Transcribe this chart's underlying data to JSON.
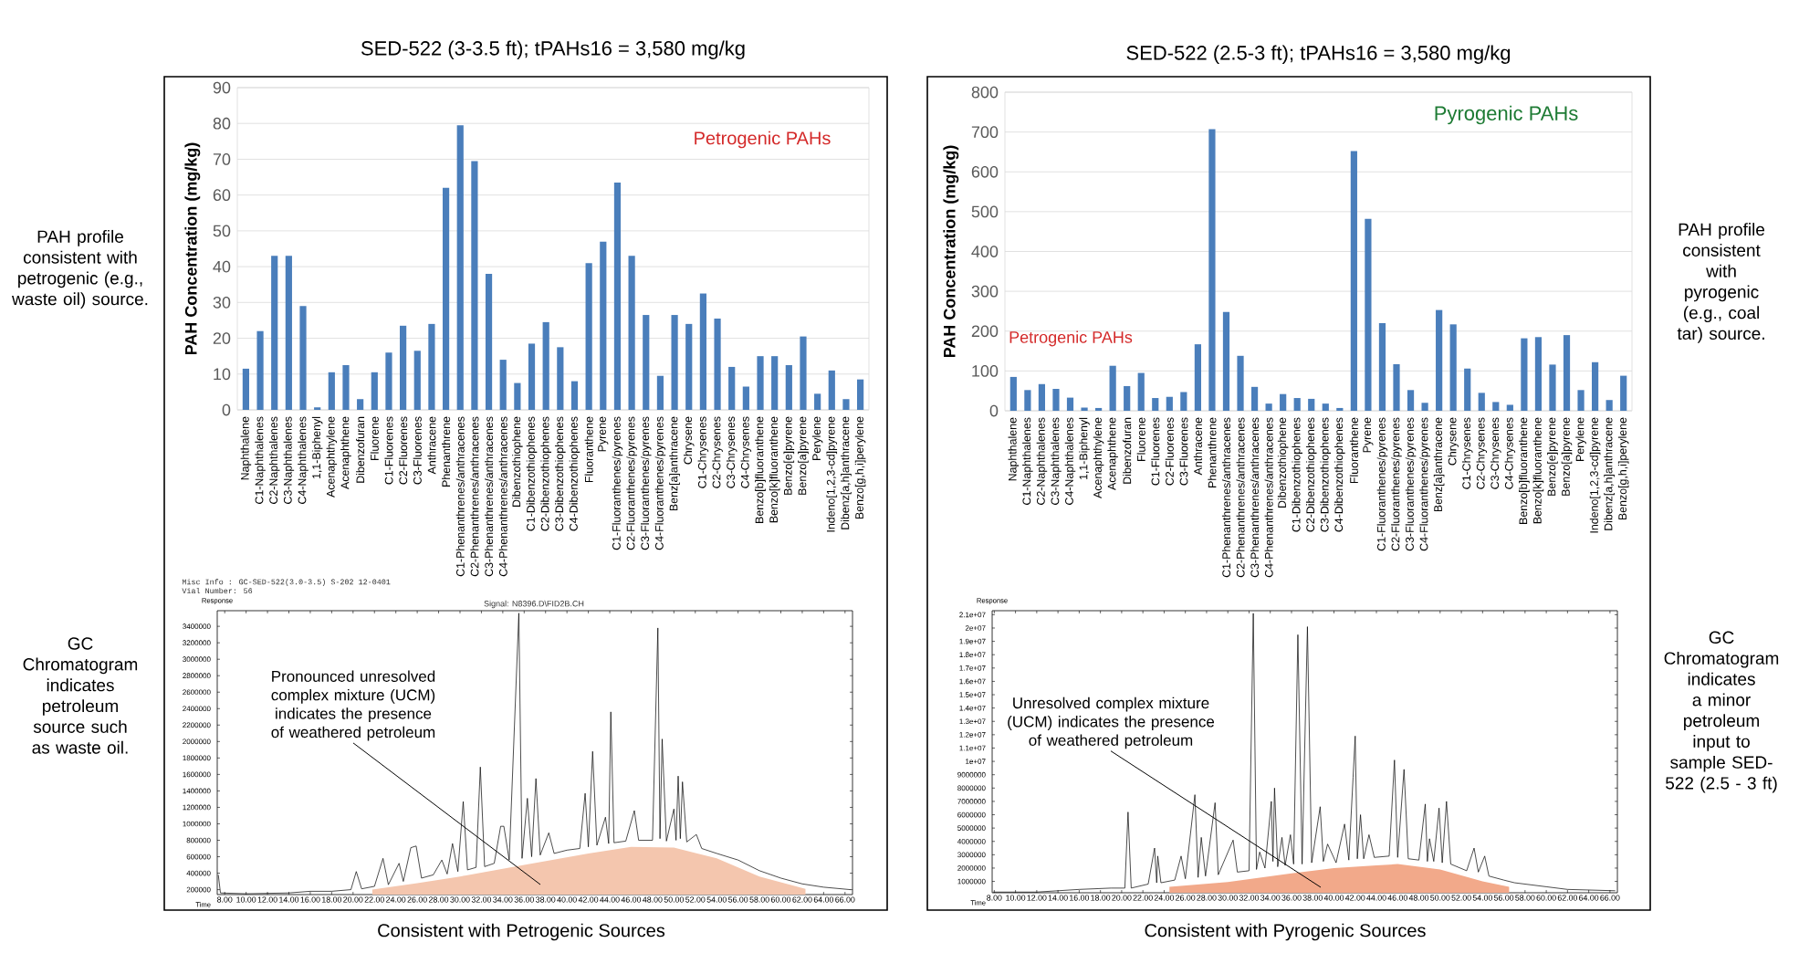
{
  "chart_data": [
    {
      "type": "bar",
      "title": "SED-522 (3-3.5 ft); tPAHs16 = 3,580 mg/kg",
      "ylabel": "PAH Concentration (mg/kg)",
      "categories": [
        "Naphthalene",
        "C1-Naphthalenes",
        "C2-Naphthalenes",
        "C3-Naphthalenes",
        "C4-Naphthalenes",
        "1,1-Biphenyl",
        "Acenaphthylene",
        "Acenaphthene",
        "Dibenzofuran",
        "Fluorene",
        "C1-Fluorenes",
        "C2-Fluorenes",
        "C3-Fluorenes",
        "Anthracene",
        "Phenanthrene",
        "C1-Phenanthrenes/anthracenes",
        "C2-Phenanthrenes/anthracenes",
        "C3-Phenanthrenes/anthracenes",
        "C4-Phenanthrenes/anthracenes",
        "Dibenzothiophene",
        "C1-Dibenzothiophenes",
        "C2-Dibenzothiophenes",
        "C3-Dibenzothiophenes",
        "C4-Dibenzothiophenes",
        "Fluoranthene",
        "Pyrene",
        "C1-Fluoranthenes/pyrenes",
        "C2-Fluoranthenes/pyrenes",
        "C3-Fluoranthenes/pyrenes",
        "C4-Fluoranthenes/pyrenes",
        "Benz[a]anthracene",
        "Chrysene",
        "C1-Chrysenes",
        "C2-Chrysenes",
        "C3-Chrysenes",
        "C4-Chrysenes",
        "Benzo[b]fluoranthene",
        "Benzo[k]fluoranthene",
        "Benzo[e]pyrene",
        "Benzo[a]pyrene",
        "Perylene",
        "Indeno[1,2,3-cd]pyrene",
        "Dibenz[a,h]anthracene",
        "Benzo[g,h,i]perylene"
      ],
      "values": [
        11.5,
        22,
        43,
        43,
        29,
        0.7,
        10.5,
        12.5,
        3,
        10.5,
        16,
        23.5,
        16.5,
        24,
        62,
        79.5,
        69.5,
        38,
        14,
        7.5,
        18.5,
        24.5,
        17.5,
        8,
        41,
        47,
        63.5,
        43,
        26.5,
        9.5,
        26.5,
        24,
        32.5,
        25.5,
        12,
        6.5,
        15,
        15,
        12.5,
        20.5,
        4.5,
        11,
        3,
        8.5
      ],
      "color": "#4a7ebb",
      "ylim": [
        0,
        90
      ],
      "yticks": [
        0,
        10,
        20,
        30,
        40,
        50,
        60,
        70,
        80,
        90
      ],
      "grid": "y",
      "annotations": [
        "Petrogenic PAHs",
        "PAH profile consistent with petrogenic (e.g., waste oil) source."
      ]
    },
    {
      "type": "bar",
      "title": "SED-522 (2.5-3 ft); tPAHs16 = 3,580 mg/kg",
      "ylabel": "PAH Concentration (mg/kg)",
      "categories": [
        "Naphthalene",
        "C1-Naphthalenes",
        "C2-Naphthalenes",
        "C3-Naphthalenes",
        "C4-Naphthalenes",
        "1,1-Biphenyl",
        "Acenaphthylene",
        "Acenaphthene",
        "Dibenzofuran",
        "Fluorene",
        "C1-Fluorenes",
        "C2-Fluorenes",
        "C3-Fluorenes",
        "Anthracene",
        "Phenanthrene",
        "C1-Phenanthrenes/anthracenes",
        "C2-Phenanthrenes/anthracenes",
        "C3-Phenanthrenes/anthracenes",
        "C4-Phenanthrenes/anthracenes",
        "Dibenzothiophene",
        "C1-Dibenzothiophenes",
        "C2-Dibenzothiophenes",
        "C3-Dibenzothiophenes",
        "C4-Dibenzothiophenes",
        "Fluoranthene",
        "Pyrene",
        "C1-Fluoranthenes/pyrenes",
        "C2-Fluoranthenes/pyrenes",
        "C3-Fluoranthenes/pyrenes",
        "C4-Fluoranthenes/pyrenes",
        "Benz[a]anthracene",
        "Chrysene",
        "C1-Chrysenes",
        "C2-Chrysenes",
        "C3-Chrysenes",
        "C4-Chrysenes",
        "Benzo[b]fluoranthene",
        "Benzo[k]fluoranthene",
        "Benzo[e]pyrene",
        "Benzo[a]pyrene",
        "Perylene",
        "Indeno[1,2,3-cd]pyrene",
        "Dibenz[a,h]anthracene",
        "Benzo[g,h,i]perylene"
      ],
      "values": [
        85,
        52,
        67,
        55,
        33,
        8,
        7,
        113,
        62,
        95,
        32,
        35,
        47,
        167,
        707,
        248,
        138,
        60,
        18,
        42,
        32,
        30,
        18,
        7,
        652,
        482,
        220,
        117,
        52,
        20,
        253,
        217,
        106,
        45,
        22,
        15,
        182,
        185,
        116,
        190,
        52,
        122,
        27,
        88
      ],
      "color": "#4a7ebb",
      "ylim": [
        0,
        800
      ],
      "yticks": [
        0,
        100,
        200,
        300,
        400,
        500,
        600,
        700,
        800
      ],
      "grid": "y",
      "annotations": [
        "Pyrogenic PAHs",
        "Petrogenic PAHs",
        "PAH profile consistent with pyrogenic (e.g., coal tar) source."
      ]
    },
    {
      "type": "line",
      "xlabel": "Time",
      "ylabel": "Response",
      "xlim": [
        7.3,
        66.7
      ],
      "ylim": [
        140000,
        3590000
      ],
      "xticks": [
        {
          "value": 8,
          "label": "8.00"
        },
        {
          "value": 10,
          "label": "10.00"
        },
        {
          "value": 12,
          "label": "12.00"
        },
        {
          "value": 14,
          "label": "14.00"
        },
        {
          "value": 16,
          "label": "16.00"
        },
        {
          "value": 18,
          "label": "18.00"
        },
        {
          "value": 20,
          "label": "20.00"
        },
        {
          "value": 22,
          "label": "22.00"
        },
        {
          "value": 24,
          "label": "24.00"
        },
        {
          "value": 26,
          "label": "26.00"
        },
        {
          "value": 28,
          "label": "28.00"
        },
        {
          "value": 30,
          "label": "30.00"
        },
        {
          "value": 32,
          "label": "32.00"
        },
        {
          "value": 34,
          "label": "34.00"
        },
        {
          "value": 36,
          "label": "36.00"
        },
        {
          "value": 38,
          "label": "38.00"
        },
        {
          "value": 40,
          "label": "40.00"
        },
        {
          "value": 42,
          "label": "42.00"
        },
        {
          "value": 44,
          "label": "44.00"
        },
        {
          "value": 46,
          "label": "46.00"
        },
        {
          "value": 48,
          "label": "48.00"
        },
        {
          "value": 50,
          "label": "50.00"
        },
        {
          "value": 52,
          "label": "52.00"
        },
        {
          "value": 54,
          "label": "54.00"
        },
        {
          "value": 56,
          "label": "56.00"
        },
        {
          "value": 58,
          "label": "58.00"
        },
        {
          "value": 60,
          "label": "60.00"
        },
        {
          "value": 62,
          "label": "62.00"
        },
        {
          "value": 64,
          "label": "64.00"
        },
        {
          "value": 66,
          "label": "66.00"
        }
      ],
      "yticks": [
        200000,
        400000,
        600000,
        800000,
        1000000,
        1200000,
        1400000,
        1600000,
        1800000,
        2000000,
        2200000,
        2400000,
        2600000,
        2800000,
        3000000,
        3200000,
        3400000
      ],
      "series": [
        {
          "type": "area",
          "color": "#f4c6ae",
          "x": [
            21.8,
            26,
            30,
            36,
            42,
            46,
            50,
            54,
            58,
            62.3
          ],
          "values": [
            200000,
            280000,
            360000,
            500000,
            640000,
            720000,
            710000,
            580000,
            360000,
            210000
          ]
        },
        {
          "type": "line",
          "color": "#000000",
          "x": [
            7.4,
            7.6,
            10,
            14,
            16,
            18,
            19.8,
            20.3,
            20.8,
            22,
            22.8,
            23.3,
            24.3,
            24.7,
            25.4,
            25.9,
            26.4,
            27.5,
            28.3,
            28.8,
            29.3,
            29.8,
            30.3,
            30.7,
            31.5,
            31.9,
            32.3,
            33.2,
            33.8,
            34.1,
            34.6,
            35.5,
            35.8,
            36.3,
            36.7,
            37.1,
            37.5,
            38.3,
            38.8,
            40,
            41.2,
            41.7,
            42.0,
            42.4,
            42.8,
            43.6,
            43.9,
            44.1,
            44.4,
            45.5,
            46.3,
            46.7,
            48,
            48.5,
            48.7,
            48.9,
            49.3,
            50.0,
            50.2,
            50.4,
            50.6,
            50.8,
            51.2,
            52.1,
            52.6,
            54,
            56,
            58,
            60,
            62,
            64,
            66.5
          ],
          "values": [
            380000,
            160000,
            150000,
            160000,
            180000,
            180000,
            200000,
            420000,
            210000,
            240000,
            580000,
            260000,
            520000,
            300000,
            710000,
            730000,
            340000,
            380000,
            560000,
            390000,
            760000,
            420000,
            1270000,
            440000,
            470000,
            1690000,
            480000,
            520000,
            970000,
            970000,
            560000,
            3560000,
            580000,
            1310000,
            600000,
            1550000,
            620000,
            890000,
            640000,
            680000,
            700000,
            1370000,
            720000,
            1880000,
            740000,
            1080000,
            760000,
            2360000,
            770000,
            790000,
            1160000,
            800000,
            800000,
            3380000,
            820000,
            2030000,
            790000,
            1180000,
            800000,
            1580000,
            820000,
            1510000,
            780000,
            870000,
            700000,
            640000,
            560000,
            430000,
            340000,
            270000,
            230000,
            200000
          ]
        }
      ],
      "annotations": [
        "Pronounced unresolved complex mixture (UCM) indicates the presence of weathered petroleum",
        "GC Chromatogram indicates petroleum source such as waste oil.",
        "Consistent with Petrogenic Sources",
        "Misc Info : GC-SED-522(3.0-3.5) S-202 12-0401",
        "Vial Number: 56",
        "Signal: N8396.D\\FID2B.CH"
      ]
    },
    {
      "type": "line",
      "xlabel": "Time",
      "ylabel": "Response",
      "xlim": [
        7.8,
        66.7
      ],
      "ylim": [
        150000,
        21300000
      ],
      "xticks": [
        {
          "value": 8,
          "label": "8.00"
        },
        {
          "value": 10,
          "label": "10.00"
        },
        {
          "value": 12,
          "label": "12.00"
        },
        {
          "value": 14,
          "label": "14.00"
        },
        {
          "value": 16,
          "label": "16.00"
        },
        {
          "value": 18,
          "label": "18.00"
        },
        {
          "value": 20,
          "label": "20.00"
        },
        {
          "value": 22,
          "label": "22.00"
        },
        {
          "value": 24,
          "label": "24.00"
        },
        {
          "value": 26,
          "label": "26.00"
        },
        {
          "value": 28,
          "label": "28.00"
        },
        {
          "value": 30,
          "label": "30.00"
        },
        {
          "value": 32,
          "label": "32.00"
        },
        {
          "value": 34,
          "label": "34.00"
        },
        {
          "value": 36,
          "label": "36.00"
        },
        {
          "value": 38,
          "label": "38.00"
        },
        {
          "value": 40,
          "label": "40.00"
        },
        {
          "value": 42,
          "label": "42.00"
        },
        {
          "value": 44,
          "label": "44.00"
        },
        {
          "value": 46,
          "label": "46.00"
        },
        {
          "value": 48,
          "label": "48.00"
        },
        {
          "value": 50,
          "label": "50.00"
        },
        {
          "value": 52,
          "label": "52.00"
        },
        {
          "value": 54,
          "label": "54.00"
        },
        {
          "value": 56,
          "label": "56.00"
        },
        {
          "value": 58,
          "label": "58.00"
        },
        {
          "value": 60,
          "label": "60.00"
        },
        {
          "value": 62,
          "label": "62.00"
        },
        {
          "value": 64,
          "label": "64.00"
        },
        {
          "value": 66,
          "label": "66.00"
        }
      ],
      "yticks": [
        1000000,
        2000000,
        3000000,
        4000000,
        5000000,
        6000000,
        7000000,
        8000000,
        9000000,
        {
          "value": 10000000,
          "label": "1e+07"
        },
        {
          "value": 11000000,
          "label": "1.1e+07"
        },
        {
          "value": 12000000,
          "label": "1.2e+07"
        },
        {
          "value": 13000000,
          "label": "1.3e+07"
        },
        {
          "value": 14000000,
          "label": "1.4e+07"
        },
        {
          "value": 15000000,
          "label": "1.5e+07"
        },
        {
          "value": 16000000,
          "label": "1.6e+07"
        },
        {
          "value": 17000000,
          "label": "1.7e+07"
        },
        {
          "value": 18000000,
          "label": "1.8e+07"
        },
        {
          "value": 19000000,
          "label": "1.9e+07"
        },
        {
          "value": 20000000,
          "label": "2e+07"
        },
        {
          "value": 21000000,
          "label": "2.1e+07"
        }
      ],
      "series": [
        {
          "type": "area",
          "color": "#f2a98a",
          "x": [
            24.5,
            30,
            36,
            40,
            44,
            46,
            50,
            54,
            56.5
          ],
          "values": [
            600000,
            950000,
            1600000,
            2000000,
            2200000,
            2300000,
            1900000,
            1000000,
            600000
          ]
        },
        {
          "type": "line",
          "color": "#000000",
          "x": [
            7.9,
            12,
            16,
            19,
            20.3,
            20.6,
            20.9,
            22.5,
            23.1,
            23.3,
            23.4,
            23.7,
            25,
            25.6,
            26,
            26.9,
            27.2,
            27.5,
            27.9,
            28.8,
            29.1,
            30.5,
            30.9,
            32,
            32.4,
            32.7,
            33.0,
            33.5,
            34.1,
            34.25,
            34.4,
            34.7,
            35.1,
            35.4,
            35.9,
            36.2,
            36.6,
            37.0,
            37.5,
            37.9,
            38.7,
            39.0,
            39.4,
            40.2,
            41.0,
            41.4,
            41.8,
            42.0,
            42.2,
            42.5,
            42.8,
            43.3,
            43.8,
            45.2,
            45.7,
            46.0,
            46.6,
            47.0,
            48.0,
            48.6,
            48.8,
            49.0,
            49.4,
            49.9,
            50.2,
            50.6,
            51.0,
            52.5,
            53.2,
            53.6,
            54.2,
            54.6,
            56,
            57,
            60,
            62,
            66.5
          ],
          "values": [
            200000,
            200000,
            400000,
            500000,
            500000,
            6200000,
            500000,
            800000,
            3500000,
            900000,
            2900000,
            900000,
            1100000,
            2900000,
            1200000,
            7500000,
            1300000,
            4300000,
            1400000,
            6900000,
            1500000,
            4100000,
            1700000,
            1800000,
            21100000,
            1900000,
            3200000,
            2000000,
            7000000,
            2500000,
            8000000,
            2100000,
            4300000,
            2200000,
            4500000,
            2300000,
            19500000,
            2300000,
            20100000,
            2400000,
            6600000,
            2500000,
            3800000,
            2400000,
            5300000,
            2600000,
            8800000,
            11900000,
            2700000,
            6000000,
            2700000,
            4500000,
            2800000,
            2900000,
            10100000,
            2800000,
            9400000,
            2700000,
            2600000,
            6800000,
            2500000,
            4200000,
            2500000,
            6500000,
            2400000,
            7000000,
            2300000,
            1800000,
            3500000,
            1700000,
            2900000,
            1400000,
            1100000,
            900000,
            600000,
            400000,
            300000
          ]
        }
      ],
      "annotations": [
        "Unresolved complex mixture (UCM) indicates the presence of weathered petroleum",
        "GC Chromatogram indicates a minor petroleum input to sample SED-522 (2.5 - 3 ft)",
        "Consistent with Pyrogenic Sources"
      ]
    }
  ]
}
